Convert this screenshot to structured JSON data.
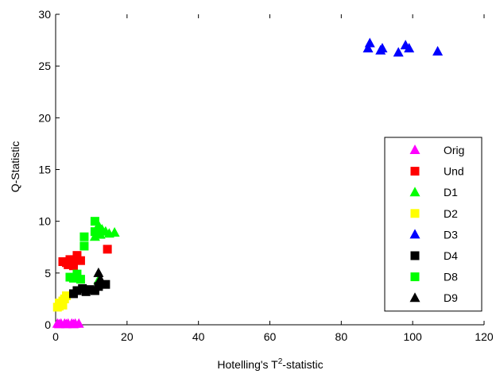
{
  "chart_data": {
    "type": "scatter",
    "xlabel_prefix": "Hotelling's T",
    "xlabel_sup": "2",
    "xlabel_suffix": "-statistic",
    "ylabel": "Q-Statistic",
    "xlim": [
      0,
      120
    ],
    "ylim": [
      0,
      30
    ],
    "xticks": [
      0,
      20,
      40,
      60,
      80,
      100,
      120
    ],
    "yticks": [
      0,
      5,
      10,
      15,
      20,
      25,
      30
    ],
    "legend_position": "right",
    "series": [
      {
        "name": "Orig",
        "marker": "triangle",
        "color": "#ff00ff",
        "points": [
          [
            0.5,
            0.1
          ],
          [
            1.5,
            0.1
          ],
          [
            2.5,
            0.1
          ],
          [
            3.5,
            0.1
          ],
          [
            4.5,
            0.1
          ],
          [
            5.5,
            0.1
          ],
          [
            6.5,
            0.1
          ],
          [
            1,
            0.05
          ],
          [
            3,
            0.05
          ],
          [
            5,
            0.05
          ]
        ]
      },
      {
        "name": "Und",
        "marker": "square",
        "color": "#ff0000",
        "points": [
          [
            2,
            6.1
          ],
          [
            3,
            6.0
          ],
          [
            4,
            6.3
          ],
          [
            5,
            6.0
          ],
          [
            6,
            6.7
          ],
          [
            7,
            6.2
          ],
          [
            5,
            5.7
          ],
          [
            3.5,
            5.8
          ],
          [
            14.5,
            7.3
          ]
        ]
      },
      {
        "name": "D1",
        "marker": "triangle",
        "color": "#00ff00",
        "points": [
          [
            11,
            8.5
          ],
          [
            12,
            9.6
          ],
          [
            13,
            9.2
          ],
          [
            14,
            9.0
          ],
          [
            15,
            8.8
          ],
          [
            16.5,
            8.9
          ],
          [
            12.5,
            8.7
          ],
          [
            12,
            4.3
          ]
        ]
      },
      {
        "name": "D2",
        "marker": "square",
        "color": "#ffff00",
        "points": [
          [
            0.5,
            1.7
          ],
          [
            1,
            1.8
          ],
          [
            1.5,
            2.0
          ],
          [
            2,
            2.3
          ],
          [
            2.5,
            2.5
          ],
          [
            3,
            2.8
          ],
          [
            1,
            2.1
          ],
          [
            2,
            1.9
          ]
        ]
      },
      {
        "name": "D3",
        "marker": "triangle",
        "color": "#0000ff",
        "points": [
          [
            87.5,
            26.7
          ],
          [
            88,
            27.2
          ],
          [
            91,
            26.5
          ],
          [
            91.5,
            26.7
          ],
          [
            96,
            26.3
          ],
          [
            98,
            27.0
          ],
          [
            99,
            26.7
          ],
          [
            107,
            26.4
          ]
        ]
      },
      {
        "name": "D4",
        "marker": "square",
        "color": "#000000",
        "points": [
          [
            5,
            3.0
          ],
          [
            6,
            3.3
          ],
          [
            7.5,
            3.5
          ],
          [
            8.5,
            3.2
          ],
          [
            9.5,
            3.4
          ],
          [
            11,
            3.3
          ],
          [
            12,
            3.7
          ],
          [
            14,
            3.9
          ]
        ]
      },
      {
        "name": "D8",
        "marker": "square",
        "color": "#00ff00",
        "points": [
          [
            4,
            4.6
          ],
          [
            5,
            4.5
          ],
          [
            6,
            4.9
          ],
          [
            7,
            4.4
          ],
          [
            8,
            7.6
          ],
          [
            8,
            8.5
          ],
          [
            11,
            9.0
          ],
          [
            11,
            10.0
          ]
        ]
      },
      {
        "name": "D9",
        "marker": "triangle",
        "color": "#000000",
        "points": [
          [
            12,
            5.0
          ],
          [
            12.5,
            4.4
          ]
        ]
      }
    ]
  }
}
